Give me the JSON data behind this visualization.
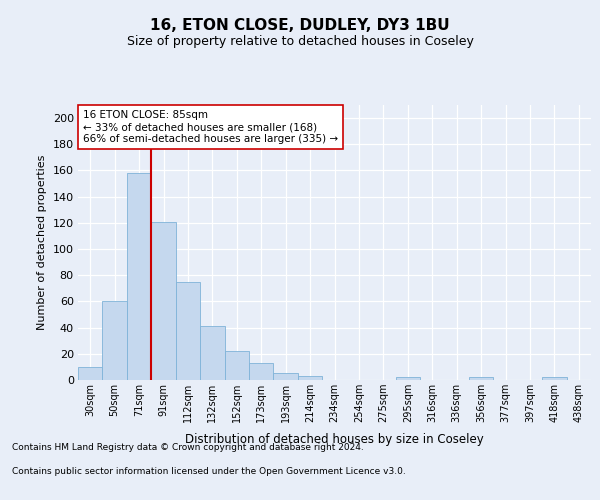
{
  "title1": "16, ETON CLOSE, DUDLEY, DY3 1BU",
  "title2": "Size of property relative to detached houses in Coseley",
  "xlabel": "Distribution of detached houses by size in Coseley",
  "ylabel": "Number of detached properties",
  "categories": [
    "30sqm",
    "50sqm",
    "71sqm",
    "91sqm",
    "112sqm",
    "132sqm",
    "152sqm",
    "173sqm",
    "193sqm",
    "214sqm",
    "234sqm",
    "254sqm",
    "275sqm",
    "295sqm",
    "316sqm",
    "336sqm",
    "356sqm",
    "377sqm",
    "397sqm",
    "418sqm",
    "438sqm"
  ],
  "values": [
    10,
    60,
    158,
    121,
    75,
    41,
    22,
    13,
    5,
    3,
    0,
    0,
    0,
    2,
    0,
    0,
    2,
    0,
    0,
    2,
    0
  ],
  "bar_color": "#c5d8ee",
  "bar_edge_color": "#7fb3d8",
  "vline_index": 2,
  "vline_color": "#cc0000",
  "annotation_line1": "16 ETON CLOSE: 85sqm",
  "annotation_line2": "← 33% of detached houses are smaller (168)",
  "annotation_line3": "66% of semi-detached houses are larger (335) →",
  "annotation_box_facecolor": "#ffffff",
  "annotation_box_edgecolor": "#cc0000",
  "ylim_max": 210,
  "yticks": [
    0,
    20,
    40,
    60,
    80,
    100,
    120,
    140,
    160,
    180,
    200
  ],
  "footer1": "Contains HM Land Registry data © Crown copyright and database right 2024.",
  "footer2": "Contains public sector information licensed under the Open Government Licence v3.0.",
  "bg_color": "#e8eef8"
}
